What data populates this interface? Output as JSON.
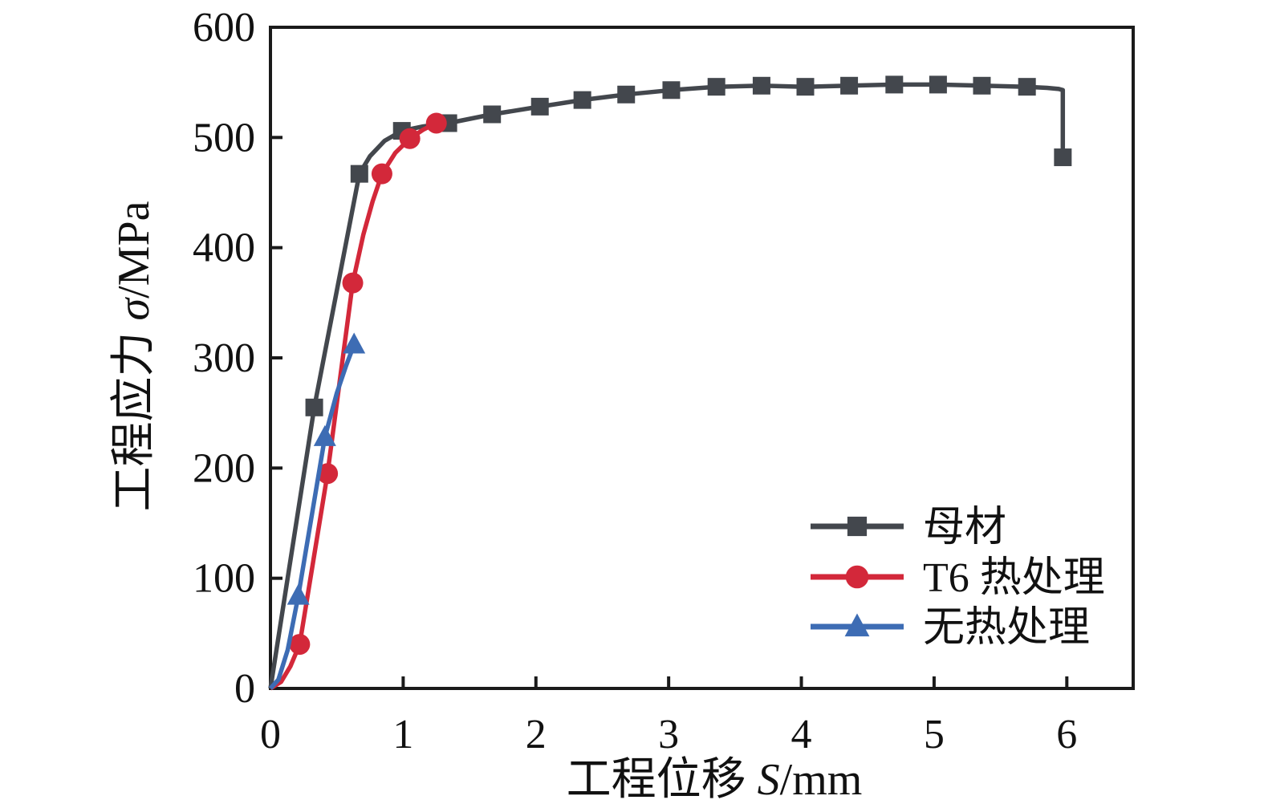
{
  "chart_data": {
    "type": "line",
    "title": "",
    "xlabel": {
      "prefix": "工程位移 ",
      "symbol": "S",
      "unit": "/mm"
    },
    "ylabel": {
      "prefix": "工程应力 ",
      "symbol": "σ",
      "unit": "/MPa"
    },
    "xlim": [
      0,
      6.5
    ],
    "ylim": [
      0,
      600
    ],
    "x_ticks": [
      0,
      1,
      2,
      3,
      4,
      5,
      6
    ],
    "y_ticks": [
      0,
      100,
      200,
      300,
      400,
      500,
      600
    ],
    "grid": false,
    "legend_position": "lower right",
    "axis_color": "#1a1a1a",
    "text_color": "#111111",
    "series": [
      {
        "name": "母材",
        "color": "#43474d",
        "marker": "square",
        "line": [
          [
            0,
            0
          ],
          [
            0.33,
            255
          ],
          [
            0.67,
            467
          ],
          [
            0.75,
            483
          ],
          [
            0.86,
            497
          ],
          [
            0.99,
            506
          ],
          [
            1.15,
            510
          ],
          [
            1.34,
            513
          ],
          [
            1.67,
            521
          ],
          [
            2.03,
            528
          ],
          [
            2.35,
            534
          ],
          [
            2.68,
            539
          ],
          [
            3.02,
            543
          ],
          [
            3.36,
            546
          ],
          [
            3.7,
            547
          ],
          [
            4.03,
            546
          ],
          [
            4.36,
            547
          ],
          [
            4.7,
            548
          ],
          [
            5.03,
            548
          ],
          [
            5.36,
            547
          ],
          [
            5.7,
            546
          ],
          [
            5.85,
            545
          ],
          [
            5.94,
            544
          ],
          [
            5.97,
            543
          ],
          [
            5.97,
            482
          ]
        ],
        "markers": [
          [
            0.33,
            255
          ],
          [
            0.67,
            467
          ],
          [
            0.99,
            506
          ],
          [
            1.34,
            513
          ],
          [
            1.67,
            521
          ],
          [
            2.03,
            528
          ],
          [
            2.35,
            534
          ],
          [
            2.68,
            539
          ],
          [
            3.02,
            543
          ],
          [
            3.36,
            546
          ],
          [
            3.7,
            547
          ],
          [
            4.03,
            546
          ],
          [
            4.36,
            547
          ],
          [
            4.7,
            548
          ],
          [
            5.03,
            548
          ],
          [
            5.36,
            547
          ],
          [
            5.7,
            546
          ],
          [
            5.97,
            482
          ]
        ]
      },
      {
        "name": "T6 热处理",
        "color": "#d3283a",
        "marker": "circle",
        "line": [
          [
            0,
            0
          ],
          [
            0.08,
            6
          ],
          [
            0.15,
            20
          ],
          [
            0.22,
            40
          ],
          [
            0.43,
            195
          ],
          [
            0.62,
            368
          ],
          [
            0.7,
            412
          ],
          [
            0.77,
            442
          ],
          [
            0.84,
            467
          ],
          [
            0.94,
            486
          ],
          [
            1.05,
            499
          ],
          [
            1.15,
            507
          ],
          [
            1.25,
            513
          ],
          [
            1.3,
            514
          ]
        ],
        "markers": [
          [
            0.22,
            40
          ],
          [
            0.43,
            195
          ],
          [
            0.62,
            368
          ],
          [
            0.84,
            467
          ],
          [
            1.05,
            499
          ],
          [
            1.25,
            513
          ]
        ]
      },
      {
        "name": "无热处理",
        "color": "#3d6cb4",
        "marker": "triangle",
        "line": [
          [
            0,
            0
          ],
          [
            0.06,
            8
          ],
          [
            0.13,
            35
          ],
          [
            0.21,
            84
          ],
          [
            0.41,
            228
          ],
          [
            0.5,
            268
          ],
          [
            0.57,
            293
          ],
          [
            0.63,
            312
          ]
        ],
        "markers": [
          [
            0.21,
            84
          ],
          [
            0.41,
            228
          ],
          [
            0.63,
            312
          ]
        ]
      }
    ],
    "legend_labels": [
      "母材",
      "T6 热处理",
      "无热处理"
    ]
  }
}
